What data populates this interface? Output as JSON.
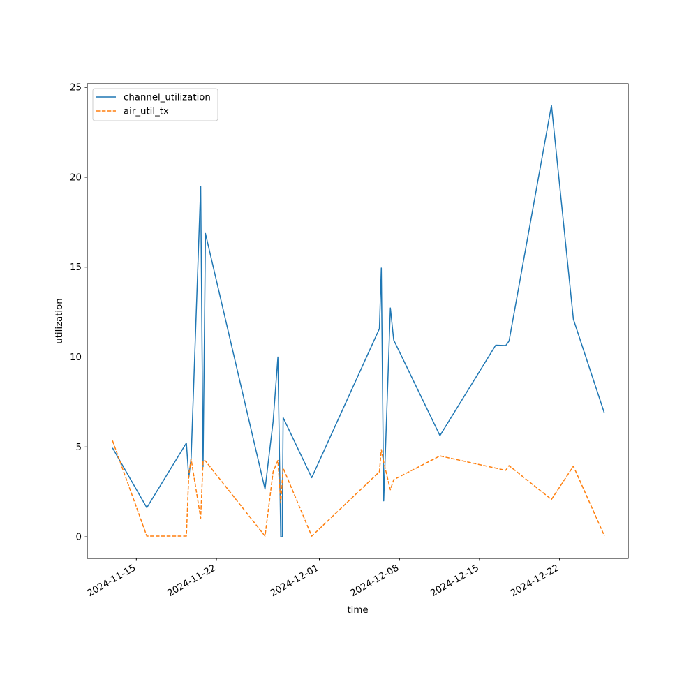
{
  "chart_data": {
    "type": "line",
    "xlabel": "time",
    "ylabel": "utilization",
    "x_is_date": true,
    "xlim": [
      "2024-11-10T17:00",
      "2024-12-28T00:00"
    ],
    "ylim": [
      -1.2,
      25.2
    ],
    "yticks": [
      0,
      5,
      10,
      15,
      20,
      25
    ],
    "ytick_labels": [
      "0",
      "5",
      "10",
      "15",
      "20",
      "25"
    ],
    "xticks": [
      "2024-11-15",
      "2024-11-22",
      "2024-12-01",
      "2024-12-08",
      "2024-12-15",
      "2024-12-22"
    ],
    "xtick_labels": [
      "2024-11-15",
      "2024-11-22",
      "2024-12-01",
      "2024-12-08",
      "2024-12-15",
      "2024-12-22"
    ],
    "grid": false,
    "legend_position": "top-left",
    "series": [
      {
        "name": "channel_utilization",
        "color": "#1f77b4",
        "style": "solid",
        "points": [
          [
            "2024-11-12T22:00",
            4.95
          ],
          [
            "2024-11-15T22:00",
            1.62
          ],
          [
            "2024-11-19T09:00",
            5.22
          ],
          [
            "2024-11-19T14:00",
            3.29
          ],
          [
            "2024-11-19T19:00",
            4.41
          ],
          [
            "2024-11-20T15:00",
            19.5
          ],
          [
            "2024-11-20T20:00",
            3.91
          ],
          [
            "2024-11-21T01:00",
            16.87
          ],
          [
            "2024-11-26T06:00",
            2.65
          ],
          [
            "2024-11-26T23:00",
            6.42
          ],
          [
            "2024-11-27T09:00",
            10.0
          ],
          [
            "2024-11-27T15:00",
            0.0
          ],
          [
            "2024-11-27T18:00",
            0.0
          ],
          [
            "2024-11-27T20:00",
            6.63
          ],
          [
            "2024-11-30T08:00",
            3.29
          ],
          [
            "2024-12-06T06:00",
            11.58
          ],
          [
            "2024-12-06T10:00",
            14.95
          ],
          [
            "2024-12-06T15:00",
            2.0
          ],
          [
            "2024-12-07T05:00",
            12.73
          ],
          [
            "2024-12-07T12:00",
            10.95
          ],
          [
            "2024-12-11T13:00",
            5.63
          ],
          [
            "2024-12-16T10:00",
            10.66
          ],
          [
            "2024-12-17T07:00",
            10.64
          ],
          [
            "2024-12-17T14:00",
            10.89
          ],
          [
            "2024-12-21T07:00",
            24.0
          ],
          [
            "2024-12-23T05:00",
            12.1
          ],
          [
            "2024-12-25T22:00",
            6.88
          ]
        ]
      },
      {
        "name": "air_util_tx",
        "color": "#ff7f0e",
        "style": "dashed",
        "points": [
          [
            "2024-11-12T22:00",
            5.35
          ],
          [
            "2024-11-15T22:00",
            0.04
          ],
          [
            "2024-11-19T09:00",
            0.04
          ],
          [
            "2024-11-19T14:00",
            3.45
          ],
          [
            "2024-11-19T19:00",
            4.32
          ],
          [
            "2024-11-20T15:00",
            1.04
          ],
          [
            "2024-11-20T20:00",
            4.24
          ],
          [
            "2024-11-21T01:00",
            4.22
          ],
          [
            "2024-11-26T06:00",
            0.04
          ],
          [
            "2024-11-26T23:00",
            3.62
          ],
          [
            "2024-11-27T09:00",
            4.25
          ],
          [
            "2024-11-27T15:00",
            1.88
          ],
          [
            "2024-11-27T20:00",
            3.83
          ],
          [
            "2024-11-30T08:00",
            0.04
          ],
          [
            "2024-12-06T06:00",
            3.62
          ],
          [
            "2024-12-06T10:00",
            4.85
          ],
          [
            "2024-12-06T15:00",
            4.15
          ],
          [
            "2024-12-07T05:00",
            2.62
          ],
          [
            "2024-12-07T12:00",
            3.18
          ],
          [
            "2024-12-11T13:00",
            4.5
          ],
          [
            "2024-12-17T07:00",
            3.7
          ],
          [
            "2024-12-17T14:00",
            3.96
          ],
          [
            "2024-12-21T07:00",
            2.08
          ],
          [
            "2024-12-23T05:00",
            3.93
          ],
          [
            "2024-12-25T22:00",
            0.06
          ]
        ]
      }
    ]
  }
}
